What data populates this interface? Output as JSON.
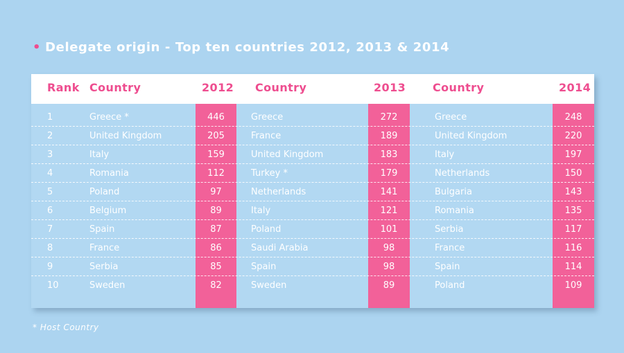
{
  "title": "Delegate origin - Top ten countries 2012, 2013 & 2014",
  "bullet": "•",
  "headers": {
    "rank": "Rank",
    "country_2012": "Country",
    "year_2012": "2012",
    "country_2013": "Country",
    "year_2013": "2013",
    "country_2014": "Country",
    "year_2014": "2014"
  },
  "rows": [
    {
      "rank": "1",
      "c2012": "Greece *",
      "v2012": "446",
      "c2013": "Greece",
      "v2013": "272",
      "c2014": "Greece",
      "v2014": "248"
    },
    {
      "rank": "2",
      "c2012": "United Kingdom",
      "v2012": "205",
      "c2013": "France",
      "v2013": "189",
      "c2014": "United Kingdom",
      "v2014": "220"
    },
    {
      "rank": "3",
      "c2012": "Italy",
      "v2012": "159",
      "c2013": "United Kingdom",
      "v2013": "183",
      "c2014": "Italy",
      "v2014": "197"
    },
    {
      "rank": "4",
      "c2012": "Romania",
      "v2012": "112",
      "c2013": "Turkey *",
      "v2013": "179",
      "c2014": "Netherlands",
      "v2014": "150"
    },
    {
      "rank": "5",
      "c2012": "Poland",
      "v2012": "97",
      "c2013": "Netherlands",
      "v2013": "141",
      "c2014": "Bulgaria",
      "v2014": "143"
    },
    {
      "rank": "6",
      "c2012": "Belgium",
      "v2012": "89",
      "c2013": "Italy",
      "v2013": "121",
      "c2014": "Romania",
      "v2014": "135"
    },
    {
      "rank": "7",
      "c2012": "Spain",
      "v2012": "87",
      "c2013": "Poland",
      "v2013": "101",
      "c2014": "Serbia",
      "v2014": "117"
    },
    {
      "rank": "8",
      "c2012": "France",
      "v2012": "86",
      "c2013": "Saudi Arabia",
      "v2013": "98",
      "c2014": "France",
      "v2014": "116"
    },
    {
      "rank": "9",
      "c2012": "Serbia",
      "v2012": "85",
      "c2013": "Spain",
      "v2013": "98",
      "c2014": "Spain",
      "v2014": "114"
    },
    {
      "rank": "10",
      "c2012": "Sweden",
      "v2012": "82",
      "c2013": "Sweden",
      "v2013": "89",
      "c2014": "Poland",
      "v2014": "109"
    }
  ],
  "footnote": "* Host Country",
  "colors": {
    "background": "#acd4f0",
    "accent_pink": "#ee4d8f",
    "column_pink": "#f26199",
    "header_bar": "#ffffff",
    "text": "#ffffff"
  }
}
